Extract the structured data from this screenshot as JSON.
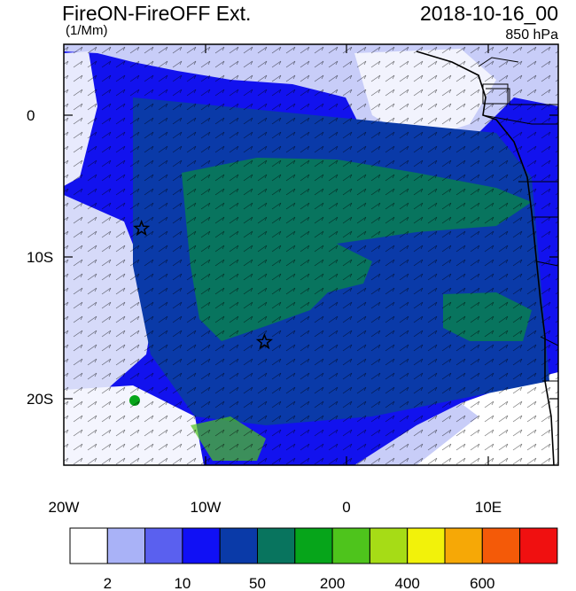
{
  "header": {
    "title": "FireON-FireOFF Ext.",
    "datetime": "2018-10-16_00",
    "units": "(1/Mm)",
    "level": "850 hPa"
  },
  "axes": {
    "x_ticks": [
      "20W",
      "10W",
      "0",
      "10E"
    ],
    "y_ticks": [
      "0",
      "10S",
      "20S"
    ]
  },
  "colorbar": {
    "colors": [
      "#ffffff",
      "#a9b2f7",
      "#5a60ef",
      "#1010f5",
      "#0a3aa8",
      "#08745e",
      "#06a51a",
      "#4ec41c",
      "#a6dc16",
      "#f2f20a",
      "#f6a806",
      "#f45a08",
      "#f01010"
    ],
    "labels": [
      "2",
      "10",
      "50",
      "200",
      "400",
      "600"
    ]
  },
  "map": {
    "markers": [
      {
        "name": "star-marker-west",
        "lon": -14.5,
        "lat": -8
      },
      {
        "name": "star-marker-center",
        "lon": -5.8,
        "lat": -16
      }
    ]
  }
}
